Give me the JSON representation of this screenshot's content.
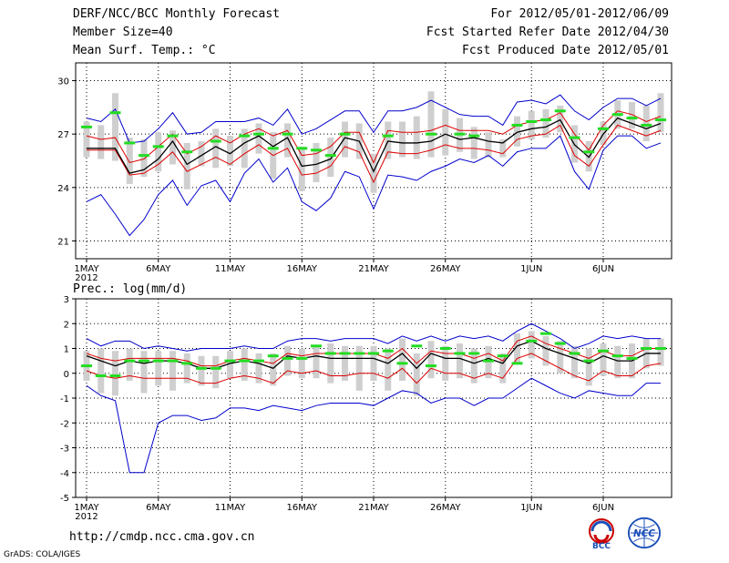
{
  "header": {
    "title": "DERF/NCC/BCC Monthly Forecast",
    "member": "Member Size=40",
    "variable": "Mean Surf. Temp.: °C",
    "period": "For 2012/05/01-2012/06/09",
    "started": "Fcst Started Refer Date 2012/04/30",
    "produced": "Fcst Produced Date 2012/05/01"
  },
  "footer": {
    "url": "http://cmdp.ncc.cma.gov.cn",
    "credit": "GrADS: COLA/IGES",
    "logo_bcc": "BCC",
    "logo_ncc": "NCC"
  },
  "colors": {
    "box": "#cfcfcf",
    "ens_mean": "#000000",
    "spread": "#dd0000",
    "extreme": "#0000cc",
    "obs": "#22dd22",
    "grid": "#000000"
  },
  "chart_data": [
    {
      "type": "line",
      "title": "Mean Surf. Temp.: °C",
      "x_ticks": [
        "1MAY\n2012",
        "6MAY",
        "11MAY",
        "16MAY",
        "21MAY",
        "26MAY",
        "1JUN",
        "6JUN"
      ],
      "x_tick_days": [
        0,
        5,
        10,
        15,
        20,
        25,
        31,
        36
      ],
      "ylim": [
        20,
        31
      ],
      "yticks": [
        21,
        24,
        27,
        30
      ],
      "days": 40,
      "series": [
        {
          "name": "ensemble-mean",
          "values": [
            26.2,
            26.2,
            26.2,
            24.8,
            25.0,
            25.6,
            26.6,
            25.3,
            25.8,
            26.3,
            25.9,
            26.5,
            26.9,
            26.3,
            26.8,
            25.2,
            25.3,
            25.6,
            26.8,
            26.6,
            24.9,
            26.6,
            26.5,
            26.5,
            26.6,
            27.0,
            26.7,
            26.8,
            26.6,
            26.5,
            27.1,
            27.3,
            27.4,
            27.8,
            26.4,
            25.7,
            27.0,
            27.9,
            27.6,
            27.3,
            27.6
          ]
        },
        {
          "name": "upper-spread",
          "values": [
            26.9,
            26.7,
            26.8,
            25.4,
            25.6,
            26.3,
            27.0,
            25.9,
            26.3,
            26.9,
            26.5,
            27.0,
            27.3,
            26.9,
            27.2,
            25.8,
            25.9,
            26.3,
            27.1,
            27.1,
            25.4,
            27.2,
            27.1,
            27.1,
            27.2,
            27.5,
            27.2,
            27.2,
            27.2,
            27.0,
            27.5,
            27.7,
            27.8,
            28.2,
            27.0,
            26.1,
            27.5,
            28.3,
            28.1,
            27.7,
            28.0
          ]
        },
        {
          "name": "lower-spread",
          "values": [
            26.1,
            26.1,
            26.1,
            24.7,
            24.8,
            25.3,
            26.0,
            24.9,
            25.3,
            25.7,
            25.3,
            25.9,
            26.4,
            25.8,
            26.2,
            24.7,
            24.8,
            25.2,
            26.3,
            26.0,
            24.3,
            26.0,
            25.9,
            25.9,
            26.1,
            26.4,
            26.2,
            26.2,
            26.1,
            25.9,
            26.7,
            26.9,
            27.0,
            27.5,
            25.8,
            25.2,
            26.4,
            27.5,
            27.2,
            26.9,
            27.2
          ]
        },
        {
          "name": "maximum",
          "values": [
            27.9,
            27.7,
            28.4,
            26.5,
            26.6,
            27.3,
            28.2,
            27.0,
            27.1,
            27.7,
            27.7,
            27.7,
            27.9,
            27.5,
            28.4,
            27.0,
            27.3,
            27.8,
            28.3,
            28.3,
            27.1,
            28.3,
            28.3,
            28.5,
            28.9,
            28.5,
            28.1,
            28.0,
            28.0,
            27.5,
            28.8,
            28.9,
            28.7,
            29.2,
            28.3,
            27.8,
            28.5,
            29.0,
            29.0,
            28.6,
            29.0
          ]
        },
        {
          "name": "minimum",
          "values": [
            23.2,
            23.6,
            22.5,
            21.3,
            22.2,
            23.6,
            24.4,
            23.0,
            24.1,
            24.4,
            23.2,
            24.8,
            25.6,
            24.3,
            25.1,
            23.2,
            22.7,
            23.4,
            24.9,
            24.6,
            22.8,
            24.7,
            24.6,
            24.4,
            24.9,
            25.2,
            25.6,
            25.4,
            25.8,
            25.2,
            26.0,
            26.2,
            26.2,
            26.9,
            24.9,
            23.9,
            26.1,
            26.9,
            26.9,
            26.2,
            26.5
          ]
        },
        {
          "name": "box-top",
          "values": [
            27.7,
            27.5,
            29.3,
            26.8,
            26.7,
            27.1,
            27.2,
            26.5,
            26.6,
            27.3,
            26.9,
            27.3,
            27.6,
            27.1,
            27.6,
            26.3,
            26.5,
            26.8,
            27.7,
            27.6,
            25.9,
            27.7,
            27.7,
            28.0,
            29.4,
            28.4,
            27.9,
            27.4,
            27.1,
            26.7,
            28.0,
            28.3,
            28.4,
            28.6,
            27.5,
            26.6,
            27.7,
            28.9,
            28.8,
            28.6,
            29.3
          ]
        },
        {
          "name": "box-bottom",
          "values": [
            25.7,
            25.6,
            25.5,
            24.2,
            24.6,
            24.9,
            25.3,
            23.9,
            25.2,
            25.1,
            25.2,
            25.1,
            25.9,
            24.5,
            25.7,
            23.8,
            24.3,
            24.6,
            25.7,
            25.6,
            23.7,
            25.6,
            25.7,
            25.6,
            25.7,
            25.8,
            26.0,
            25.6,
            25.7,
            25.7,
            26.3,
            26.7,
            26.8,
            27.1,
            25.4,
            24.9,
            26.4,
            27.3,
            27.3,
            26.6,
            27.1
          ]
        },
        {
          "name": "observation",
          "values": [
            27.4,
            null,
            28.2,
            26.5,
            25.8,
            26.3,
            26.9,
            26.0,
            null,
            26.6,
            null,
            26.9,
            27.0,
            26.2,
            27.0,
            26.2,
            26.1,
            25.8,
            27.0,
            null,
            null,
            26.9,
            null,
            null,
            27.0,
            null,
            27.0,
            26.9,
            null,
            null,
            27.5,
            27.7,
            27.8,
            28.3,
            26.8,
            26.0,
            27.3,
            28.1,
            27.9,
            27.5,
            27.8
          ]
        }
      ]
    },
    {
      "type": "line",
      "title": "Prec.: log(mm/d)",
      "x_ticks": [
        "1MAY\n2012",
        "6MAY",
        "11MAY",
        "16MAY",
        "21MAY",
        "26MAY",
        "1JUN",
        "6JUN"
      ],
      "x_tick_days": [
        0,
        5,
        10,
        15,
        20,
        25,
        31,
        36
      ],
      "ylim": [
        -5,
        3
      ],
      "yticks": [
        -5,
        -4,
        -3,
        -2,
        -1,
        0,
        1,
        2,
        3
      ],
      "days": 40,
      "series": [
        {
          "name": "ensemble-mean",
          "values": [
            0.7,
            0.5,
            0.3,
            0.5,
            0.4,
            0.5,
            0.5,
            0.4,
            0.2,
            0.2,
            0.4,
            0.5,
            0.4,
            0.2,
            0.7,
            0.6,
            0.7,
            0.6,
            0.6,
            0.6,
            0.6,
            0.4,
            0.8,
            0.2,
            0.8,
            0.6,
            0.6,
            0.4,
            0.6,
            0.4,
            1.1,
            1.3,
            1.0,
            0.8,
            0.6,
            0.4,
            0.7,
            0.5,
            0.5,
            0.8,
            0.8
          ]
        },
        {
          "name": "upper-spread",
          "values": [
            0.8,
            0.6,
            0.5,
            0.6,
            0.6,
            0.6,
            0.6,
            0.5,
            0.3,
            0.3,
            0.5,
            0.6,
            0.5,
            0.4,
            0.8,
            0.7,
            0.8,
            0.8,
            0.8,
            0.8,
            0.8,
            0.6,
            1.0,
            0.4,
            0.9,
            0.8,
            0.8,
            0.6,
            0.8,
            0.5,
            1.3,
            1.5,
            1.2,
            1.0,
            0.8,
            0.6,
            0.9,
            0.7,
            0.7,
            1.0,
            1.0
          ]
        },
        {
          "name": "lower-spread",
          "values": [
            0.1,
            -0.1,
            -0.2,
            -0.1,
            -0.2,
            -0.2,
            -0.2,
            -0.2,
            -0.4,
            -0.4,
            -0.2,
            -0.1,
            -0.2,
            -0.4,
            0.1,
            0.0,
            0.1,
            -0.1,
            -0.1,
            0.0,
            0.0,
            -0.2,
            0.2,
            -0.4,
            0.2,
            0.0,
            0.0,
            -0.2,
            0.0,
            -0.2,
            0.6,
            0.8,
            0.5,
            0.2,
            -0.1,
            -0.3,
            0.1,
            -0.1,
            -0.1,
            0.3,
            0.4
          ]
        },
        {
          "name": "maximum",
          "values": [
            1.4,
            1.1,
            1.3,
            1.3,
            1.0,
            1.1,
            1.0,
            0.9,
            1.0,
            1.0,
            1.0,
            1.1,
            1.0,
            1.0,
            1.3,
            1.4,
            1.4,
            1.3,
            1.4,
            1.4,
            1.4,
            1.2,
            1.5,
            1.3,
            1.5,
            1.3,
            1.5,
            1.4,
            1.5,
            1.3,
            1.7,
            2.0,
            1.7,
            1.4,
            1.0,
            1.2,
            1.5,
            1.4,
            1.5,
            1.4,
            1.4
          ]
        },
        {
          "name": "minimum",
          "values": [
            -0.5,
            -0.9,
            -1.1,
            -4.0,
            -4.0,
            -2.0,
            -1.7,
            -1.7,
            -1.9,
            -1.8,
            -1.4,
            -1.4,
            -1.5,
            -1.3,
            -1.4,
            -1.5,
            -1.3,
            -1.2,
            -1.2,
            -1.2,
            -1.3,
            -1.0,
            -0.7,
            -0.8,
            -1.2,
            -1.0,
            -1.0,
            -1.3,
            -1.0,
            -1.0,
            -0.6,
            -0.2,
            -0.5,
            -0.8,
            -1.0,
            -0.7,
            -0.8,
            -0.9,
            -0.9,
            -0.4,
            -0.4
          ]
        },
        {
          "name": "box-top",
          "values": [
            0.9,
            1.0,
            0.9,
            1.0,
            0.9,
            0.9,
            0.9,
            0.8,
            0.7,
            0.7,
            0.9,
            1.0,
            0.8,
            0.8,
            1.1,
            1.0,
            1.1,
            1.2,
            1.1,
            1.1,
            1.1,
            1.0,
            1.4,
            0.8,
            1.3,
            1.1,
            1.2,
            1.0,
            1.1,
            0.8,
            1.6,
            1.7,
            1.5,
            1.3,
            1.1,
            1.0,
            1.2,
            1.1,
            1.2,
            1.4,
            1.4
          ]
        },
        {
          "name": "box-bottom",
          "values": [
            -0.3,
            -0.8,
            -0.9,
            -0.3,
            -0.8,
            -0.5,
            -0.7,
            -0.4,
            -0.5,
            -0.6,
            -0.2,
            -0.3,
            -0.4,
            -0.5,
            -0.1,
            -0.2,
            -0.2,
            -0.4,
            -0.3,
            -0.7,
            -0.3,
            -0.7,
            -0.3,
            -0.9,
            -0.2,
            -0.3,
            -0.2,
            -0.4,
            -0.2,
            -0.4,
            0.4,
            0.6,
            0.3,
            0.0,
            -0.2,
            -0.5,
            -0.1,
            -0.2,
            -0.2,
            0.2,
            0.3
          ]
        },
        {
          "name": "observation",
          "values": [
            0.3,
            -0.1,
            -0.1,
            0.5,
            0.5,
            0.5,
            0.5,
            0.4,
            0.2,
            0.2,
            0.5,
            0.5,
            0.5,
            0.7,
            0.6,
            0.6,
            1.1,
            0.8,
            0.8,
            0.8,
            0.8,
            0.9,
            0.4,
            1.1,
            0.3,
            1.0,
            0.8,
            0.8,
            0.5,
            0.7,
            0.4,
            1.3,
            1.6,
            1.2,
            0.8,
            0.5,
            0.9,
            0.7,
            0.6,
            1.0,
            1.0
          ]
        }
      ]
    }
  ]
}
